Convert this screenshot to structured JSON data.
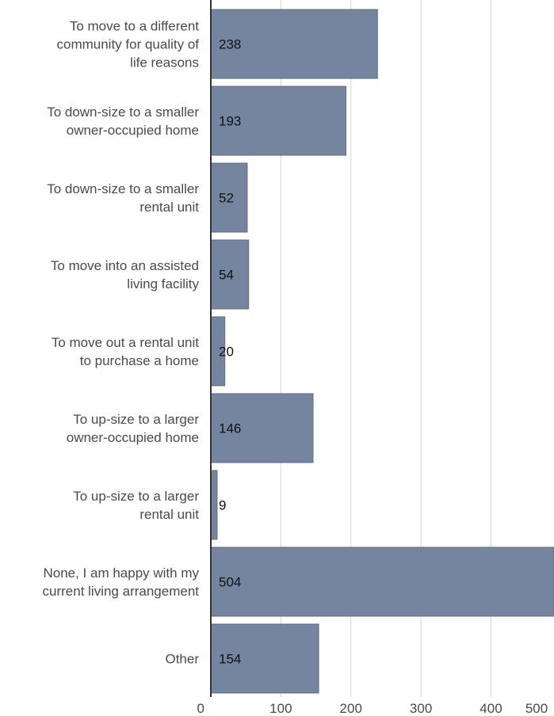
{
  "chart_data": {
    "type": "bar",
    "orientation": "horizontal",
    "categories": [
      [
        "To move to a different",
        "community for quality of",
        "life reasons"
      ],
      [
        "To down-size to a smaller",
        "owner-occupied home"
      ],
      [
        "To down-size to a smaller",
        "rental unit"
      ],
      [
        "To move into an assisted",
        "living facility"
      ],
      [
        "To move out a rental unit",
        "to purchase a home"
      ],
      [
        "To up-size to a larger",
        "owner-occupied home"
      ],
      [
        "To up-size to a larger",
        "rental unit"
      ],
      [
        "None, I am happy with my",
        "current living arrangement"
      ],
      [
        "Other"
      ]
    ],
    "values": [
      238,
      193,
      52,
      54,
      20,
      146,
      9,
      504,
      154
    ],
    "data_labels": [
      "238",
      "193",
      "52",
      "54",
      "20",
      "146",
      "9",
      "504",
      "154"
    ],
    "x_ticks": [
      0,
      100,
      200,
      300,
      400,
      500
    ],
    "x_tick_labels": [
      "0",
      "100",
      "200",
      "300",
      "400",
      "500"
    ],
    "xlim": [
      0,
      490
    ],
    "grid": true,
    "bar_color": "#76859f",
    "bar_edge_color": "#5f6d86",
    "title": "",
    "xlabel": "",
    "ylabel": ""
  }
}
